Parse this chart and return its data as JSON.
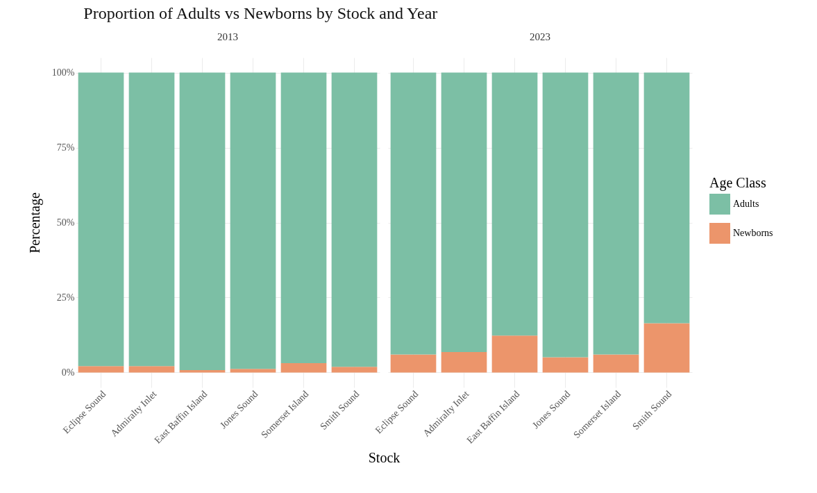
{
  "chart_data": [
    {
      "type": "bar",
      "title": "Proportion of Adults vs Newborns by Stock and Year",
      "subtitle": "2013",
      "xlabel": "Stock",
      "ylabel": "Percentage",
      "legend_title": "Age Class",
      "categories": [
        "Eclipse Sound",
        "Admiralty Inlet",
        "East Baffin Island",
        "Jones Sound",
        "Somerset Island",
        "Smith Sound"
      ],
      "stacked": true,
      "series": [
        {
          "name": "Newborns",
          "color": "#ec956b",
          "values": [
            2.1,
            2.1,
            0.8,
            1.2,
            3.1,
            1.9
          ]
        },
        {
          "name": "Adults",
          "color": "#7cbfa5",
          "values": [
            97.9,
            97.9,
            99.2,
            98.8,
            96.9,
            98.1
          ]
        }
      ],
      "ylim": [
        -5,
        105
      ],
      "yticks": [
        {
          "value": 0,
          "label": "0%"
        },
        {
          "value": 25,
          "label": "25%"
        },
        {
          "value": 50,
          "label": "50%"
        },
        {
          "value": 75,
          "label": "75%"
        },
        {
          "value": 100,
          "label": "100%"
        }
      ],
      "grid": true,
      "legend": "right"
    },
    {
      "type": "bar",
      "subtitle": "2023",
      "categories": [
        "Eclipse Sound",
        "Admiralty Inlet",
        "East Baffin Island",
        "Jones Sound",
        "Somerset Island",
        "Smith Sound"
      ],
      "stacked": true,
      "series": [
        {
          "color": "#ec956b",
          "values": [
            6.0,
            6.8,
            12.3,
            5.1,
            6.0,
            16.4
          ]
        },
        {
          "color": "#7cbfa5",
          "values": [
            94.0,
            93.2,
            87.7,
            94.9,
            94.0,
            83.6
          ]
        }
      ],
      "ylim": [
        -5,
        105
      ],
      "yticks": [
        0,
        25,
        50,
        75,
        100
      ],
      "grid": true,
      "tick_labels": "x"
    }
  ]
}
